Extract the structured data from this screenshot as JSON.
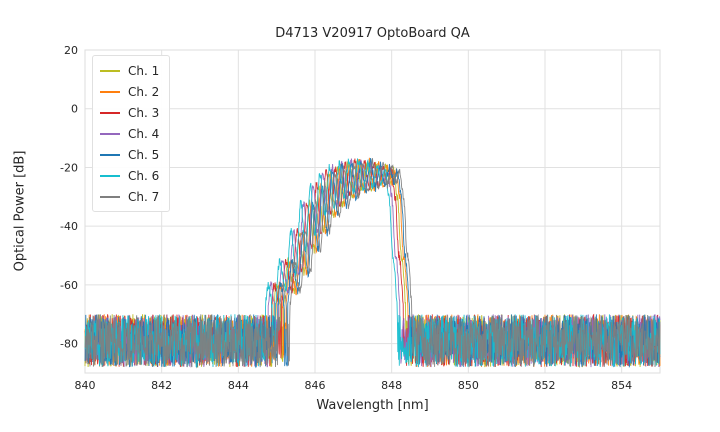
{
  "chart_data": {
    "type": "line",
    "title": "D4713 V20917 OptoBoard QA",
    "xlabel": "Wavelength [nm]",
    "ylabel": "Optical Power [dB]",
    "xlim": [
      840,
      855
    ],
    "ylim": [
      -90,
      20
    ],
    "xticks": [
      840,
      842,
      844,
      846,
      848,
      850,
      852,
      854
    ],
    "yticks": [
      20,
      0,
      -20,
      -40,
      -60,
      -80
    ],
    "grid": true,
    "grid_color": "#e1e1e1",
    "legend_position": "upper-left",
    "noise_floor_db": {
      "mean": -78,
      "min": -88,
      "max": -70
    },
    "signal_envelope": [
      [
        840.0,
        -85
      ],
      [
        844.2,
        -85
      ],
      [
        844.35,
        -72
      ],
      [
        844.5,
        -80
      ],
      [
        844.7,
        -68
      ],
      [
        844.85,
        -76
      ],
      [
        845.0,
        -60
      ],
      [
        845.15,
        -70
      ],
      [
        845.3,
        -52
      ],
      [
        845.45,
        -62
      ],
      [
        845.6,
        -42
      ],
      [
        845.72,
        -56
      ],
      [
        845.85,
        -32
      ],
      [
        845.98,
        -48
      ],
      [
        846.1,
        -26
      ],
      [
        846.22,
        -42
      ],
      [
        846.35,
        -22
      ],
      [
        846.48,
        -36
      ],
      [
        846.6,
        -20
      ],
      [
        846.72,
        -33
      ],
      [
        846.85,
        -19
      ],
      [
        846.97,
        -30
      ],
      [
        847.1,
        -18
      ],
      [
        847.22,
        -28
      ],
      [
        847.35,
        -18
      ],
      [
        847.48,
        -27
      ],
      [
        847.6,
        -19
      ],
      [
        847.72,
        -26
      ],
      [
        847.85,
        -20
      ],
      [
        847.95,
        -25
      ],
      [
        848.05,
        -21
      ],
      [
        848.15,
        -30
      ],
      [
        848.25,
        -50
      ],
      [
        848.4,
        -70
      ],
      [
        848.55,
        -85
      ],
      [
        855.0,
        -85
      ]
    ],
    "series": [
      {
        "name": "Ch. 1",
        "color": "#bcbd22",
        "offset_nm": 0.0
      },
      {
        "name": "Ch. 2",
        "color": "#ff7f0e",
        "offset_nm": 0.06
      },
      {
        "name": "Ch. 3",
        "color": "#d62728",
        "offset_nm": -0.06
      },
      {
        "name": "Ch. 4",
        "color": "#9467bd",
        "offset_nm": -0.15
      },
      {
        "name": "Ch. 5",
        "color": "#1f77b4",
        "offset_nm": 0.1
      },
      {
        "name": "Ch. 6",
        "color": "#17becf",
        "offset_nm": -0.22
      },
      {
        "name": "Ch. 7",
        "color": "#7f7f7f",
        "offset_nm": 0.16
      }
    ]
  }
}
